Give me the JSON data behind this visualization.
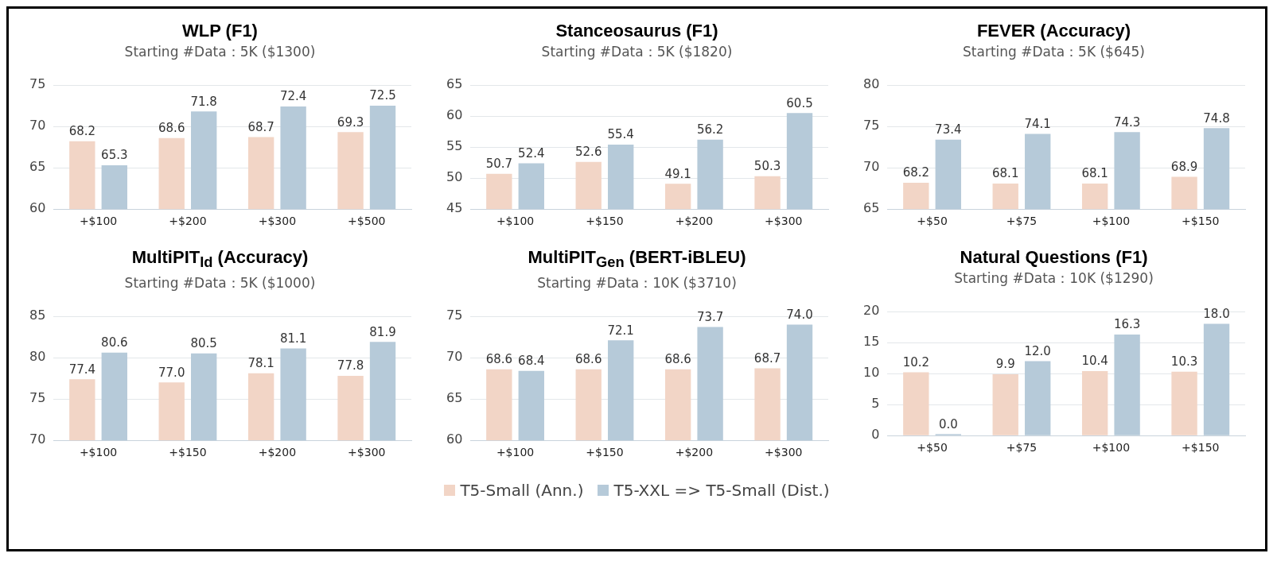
{
  "chart_data": [
    {
      "type": "bar",
      "title": "WLP (F1)",
      "subtitle": "Starting #Data：5K ($1300)",
      "categories": [
        "+$100",
        "+$200",
        "+$300",
        "+$500"
      ],
      "series": [
        {
          "color": "#f2d5c6",
          "values": [
            68.2,
            68.6,
            68.7,
            69.3
          ],
          "value_labels": [
            "68.2",
            "68.6",
            "68.7",
            "69.3"
          ]
        },
        {
          "color": "#b6cad9",
          "values": [
            65.3,
            71.8,
            72.4,
            72.5
          ],
          "value_labels": [
            "65.3",
            "71.8",
            "72.4",
            "72.5"
          ]
        }
      ],
      "ylim": [
        60,
        75
      ],
      "yticks": [
        60,
        65,
        70,
        75
      ],
      "grid": "y"
    },
    {
      "type": "bar",
      "title": "Stanceosaurus (F1)",
      "subtitle": "Starting #Data：5K ($1820)",
      "categories": [
        "+$100",
        "+$150",
        "+$200",
        "+$300"
      ],
      "series": [
        {
          "color": "#f2d5c6",
          "values": [
            50.7,
            52.6,
            49.1,
            50.3
          ],
          "value_labels": [
            "50.7",
            "52.6",
            "49.1",
            "50.3"
          ]
        },
        {
          "color": "#b6cad9",
          "values": [
            52.4,
            55.4,
            56.2,
            60.5
          ],
          "value_labels": [
            "52.4",
            "55.4",
            "56.2",
            "60.5"
          ]
        }
      ],
      "ylim": [
        45,
        65
      ],
      "yticks": [
        45,
        50,
        55,
        60,
        65
      ],
      "grid": "y"
    },
    {
      "type": "bar",
      "title": "FEVER (Accuracy)",
      "subtitle": "Starting #Data：5K ($645)",
      "categories": [
        "+$50",
        "+$75",
        "+$100",
        "+$150"
      ],
      "series": [
        {
          "color": "#f2d5c6",
          "values": [
            68.2,
            68.1,
            68.1,
            68.9
          ],
          "value_labels": [
            "68.2",
            "68.1",
            "68.1",
            "68.9"
          ]
        },
        {
          "color": "#b6cad9",
          "values": [
            73.4,
            74.1,
            74.3,
            74.8
          ],
          "value_labels": [
            "73.4",
            "74.1",
            "74.3",
            "74.8"
          ]
        }
      ],
      "ylim": [
        65,
        80
      ],
      "yticks": [
        65,
        70,
        75,
        80
      ],
      "grid": "y"
    },
    {
      "type": "bar",
      "title": "MultiPIT$_{Id}$ (Accuracy)",
      "subtitle": "Starting #Data：5K ($1000)",
      "categories": [
        "+$100",
        "+$150",
        "+$200",
        "+$300"
      ],
      "series": [
        {
          "color": "#f2d5c6",
          "values": [
            77.4,
            77.0,
            78.1,
            77.8
          ],
          "value_labels": [
            "77.4",
            "77.0",
            "78.1",
            "77.8"
          ]
        },
        {
          "color": "#b6cad9",
          "values": [
            80.6,
            80.5,
            81.1,
            81.9
          ],
          "value_labels": [
            "80.6",
            "80.5",
            "81.1",
            "81.9"
          ]
        }
      ],
      "ylim": [
        70,
        85
      ],
      "yticks": [
        70,
        75,
        80,
        85
      ],
      "grid": "y"
    },
    {
      "type": "bar",
      "title": "MultiPIT$_{Gen}$ (BERT-iBLEU)",
      "subtitle": "Starting #Data：10K ($3710)",
      "categories": [
        "+$100",
        "+$150",
        "+$200",
        "+$300"
      ],
      "series": [
        {
          "name": "T5-Small (Ann.)",
          "color": "#f2d5c6",
          "values": [
            68.6,
            68.6,
            68.6,
            68.7
          ],
          "value_labels": [
            "68.6",
            "68.6",
            "68.6",
            "68.7"
          ]
        },
        {
          "name": "T5-XXL => T5-Small (Dist.)",
          "color": "#b6cad9",
          "values": [
            68.4,
            72.1,
            73.7,
            74.0
          ],
          "value_labels": [
            "68.4",
            "72.1",
            "73.7",
            "74.0"
          ]
        }
      ],
      "ylim": [
        60,
        75
      ],
      "yticks": [
        60,
        65,
        70,
        75
      ],
      "grid": "y",
      "legend": "bottom"
    },
    {
      "type": "bar",
      "title": "Natural Questions (F1)",
      "subtitle": "Starting #Data：10K ($1290)",
      "categories": [
        "+$50",
        "+$75",
        "+$100",
        "+$150"
      ],
      "series": [
        {
          "color": "#f2d5c6",
          "values": [
            10.2,
            9.9,
            10.4,
            10.3
          ],
          "value_labels": [
            "10.2",
            "9.9",
            "10.4",
            "10.3"
          ]
        },
        {
          "color": "#b6cad9",
          "values": [
            0.0,
            12.0,
            16.3,
            18.0
          ],
          "value_labels": [
            "0.0",
            "12.0",
            "16.3",
            "18.0"
          ]
        }
      ],
      "ylim": [
        0,
        20
      ],
      "yticks": [
        0,
        5,
        10,
        15,
        20
      ],
      "grid": "y"
    }
  ]
}
